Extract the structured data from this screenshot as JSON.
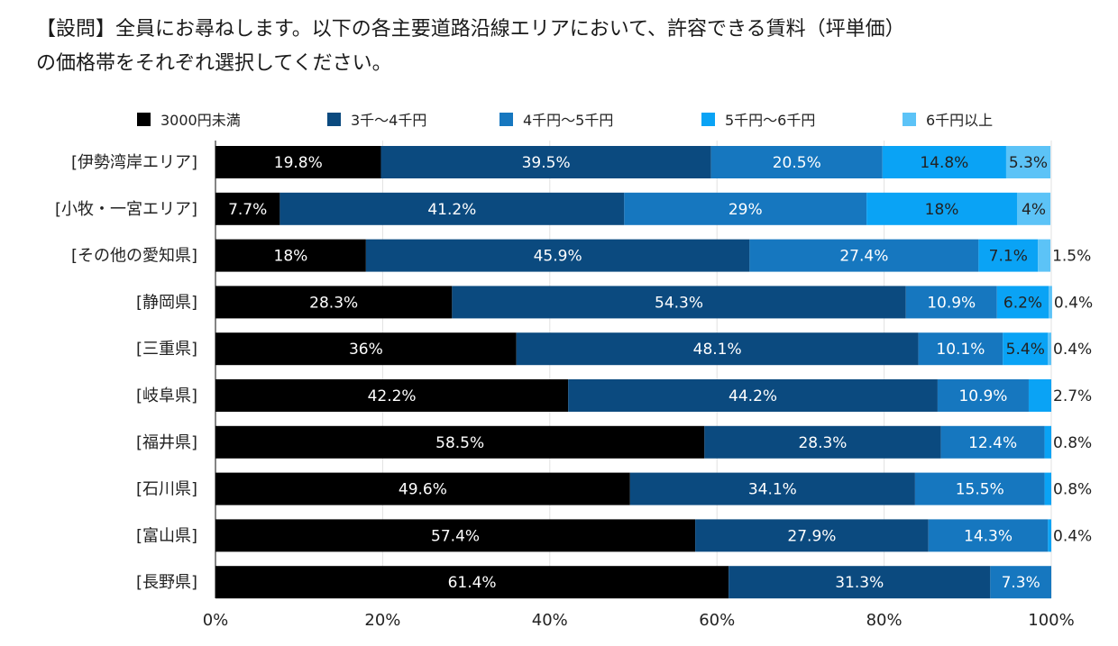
{
  "question": {
    "line1": "【設問】全員にお尋ねします。以下の各主要道路沿線エリアにおいて、許容できる賃料（坪単価）",
    "line2": "の価格帯をそれぞれ選択してください。"
  },
  "chart_data": {
    "type": "bar",
    "orientation": "horizontal",
    "stacked": "percent",
    "categories": [
      "[伊勢湾岸エリア]",
      "[小牧・一宮エリア]",
      "[その他の愛知県]",
      "[静岡県]",
      "[三重県]",
      "[岐阜県]",
      "[福井県]",
      "[石川県]",
      "[富山県]",
      "[長野県]"
    ],
    "series": [
      {
        "name": "3000円未満",
        "color": "#000000",
        "label_color": "#ffffff",
        "values": [
          19.8,
          7.7,
          18,
          28.3,
          36,
          42.2,
          58.5,
          49.6,
          57.4,
          61.4
        ]
      },
      {
        "name": "3千〜4千円",
        "color": "#0b4a7f",
        "label_color": "#ffffff",
        "values": [
          39.5,
          41.2,
          45.9,
          54.3,
          48.1,
          44.2,
          28.3,
          34.1,
          27.9,
          31.3
        ]
      },
      {
        "name": "4千円〜5千円",
        "color": "#1677bf",
        "label_color": "#ffffff",
        "values": [
          20.5,
          29,
          27.4,
          10.9,
          10.1,
          10.9,
          12.4,
          15.5,
          14.3,
          7.3
        ]
      },
      {
        "name": "5千円〜6千円",
        "color": "#0aa3f5",
        "label_color": "#222222",
        "values": [
          14.8,
          18,
          7.1,
          6.2,
          5.4,
          2.7,
          0.8,
          0.8,
          0.4,
          0
        ]
      },
      {
        "name": "6千円以上",
        "color": "#5cc3f7",
        "label_color": "#222222",
        "values": [
          5.3,
          4,
          1.5,
          0.4,
          0.4,
          0,
          0,
          0,
          0,
          0
        ]
      }
    ],
    "data_labels": [
      [
        "19.8%",
        "39.5%",
        "20.5%",
        "14.8%",
        "5.3%"
      ],
      [
        "7.7%",
        "41.2%",
        "29%",
        "18%",
        "4%"
      ],
      [
        "18%",
        "45.9%",
        "27.4%",
        "7.1%",
        "1.5%"
      ],
      [
        "28.3%",
        "54.3%",
        "10.9%",
        "6.2%",
        "0.4%"
      ],
      [
        "36%",
        "48.1%",
        "10.1%",
        "5.4%",
        "0.4%"
      ],
      [
        "42.2%",
        "44.2%",
        "10.9%",
        "2.7%",
        ""
      ],
      [
        "58.5%",
        "28.3%",
        "12.4%",
        "0.8%",
        ""
      ],
      [
        "49.6%",
        "34.1%",
        "15.5%",
        "0.8%",
        ""
      ],
      [
        "57.4%",
        "27.9%",
        "14.3%",
        "0.4%",
        ""
      ],
      [
        "61.4%",
        "31.3%",
        "7.3%",
        "",
        ""
      ]
    ],
    "xaxis": {
      "ticks": [
        "0%",
        "20%",
        "40%",
        "60%",
        "80%",
        "100%"
      ],
      "range": [
        0,
        100
      ]
    },
    "grid": true,
    "legend": "top"
  }
}
